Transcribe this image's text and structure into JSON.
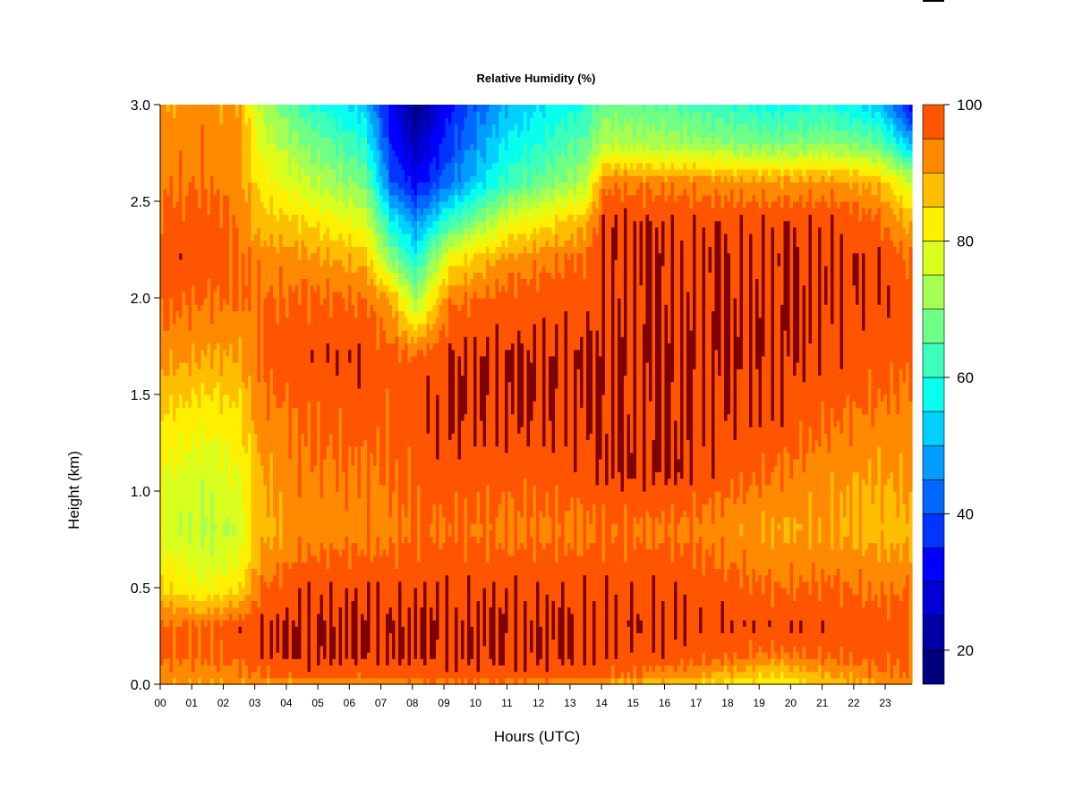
{
  "chart_data": {
    "type": "heatmap",
    "title": "Relative Humidity (%)",
    "xlabel": "Hours (UTC)",
    "ylabel": "Height (km)",
    "x_ticks": [
      "00",
      "01",
      "02",
      "03",
      "04",
      "05",
      "06",
      "07",
      "08",
      "09",
      "10",
      "11",
      "12",
      "13",
      "14",
      "15",
      "16",
      "17",
      "18",
      "19",
      "20",
      "21",
      "22",
      "23"
    ],
    "y_ticks": [
      "0.0",
      "0.5",
      "1.0",
      "1.5",
      "2.0",
      "2.5",
      "3.0"
    ],
    "xlim": [
      0,
      23.85
    ],
    "ylim": [
      0,
      3.0
    ],
    "colorbar": {
      "levels": [
        15,
        20,
        25,
        30,
        35,
        40,
        45,
        50,
        55,
        60,
        65,
        70,
        75,
        80,
        85,
        90,
        95,
        100
      ],
      "colors": [
        "#00007F",
        "#0000A8",
        "#0000D4",
        "#0000FF",
        "#0034FF",
        "#0068FF",
        "#009CFF",
        "#00D0FF",
        "#08FFEE",
        "#3CFFBA",
        "#70FF86",
        "#A4FF52",
        "#D8FF1E",
        "#FFF000",
        "#FFBF00",
        "#FF8A00",
        "#FF5400",
        "#FF2000",
        "#D40000",
        "#7F0000"
      ],
      "tick_labels": [
        "20",
        "40",
        "60",
        "80",
        "100"
      ],
      "tick_values": [
        20,
        40,
        60,
        80,
        100
      ]
    },
    "time_hours": [
      0,
      1.5,
      2.5,
      3.2,
      4.5,
      6.5,
      7.3,
      8.1,
      9.2,
      11,
      13.5,
      14.1,
      16.5,
      19.5,
      21.2,
      22.8,
      23.85
    ],
    "heights_km": [
      0.0,
      0.05,
      0.15,
      0.3,
      0.5,
      0.8,
      1.1,
      1.4,
      1.7,
      2.0,
      2.2,
      2.4,
      2.6,
      2.8,
      3.0
    ],
    "rh_percent": [
      [
        90,
        90,
        90,
        90,
        90,
        90,
        90,
        92,
        94,
        93,
        90,
        88,
        85,
        82,
        86,
        90,
        90
      ],
      [
        93,
        92,
        93,
        95,
        97,
        97,
        97,
        97,
        98,
        98,
        97,
        96,
        92,
        85,
        90,
        94,
        95
      ],
      [
        96,
        96,
        97,
        99,
        100,
        100,
        100,
        100,
        100,
        100,
        100,
        99,
        98,
        94,
        96,
        97,
        96
      ],
      [
        96,
        96,
        98,
        100,
        100,
        100,
        100,
        100,
        100,
        100,
        100,
        100,
        99,
        99,
        99,
        98,
        97
      ],
      [
        85,
        80,
        84,
        95,
        99,
        99,
        99,
        99,
        99,
        99,
        99,
        99,
        99,
        95,
        96,
        94,
        95
      ],
      [
        78,
        74,
        76,
        88,
        92,
        93,
        93,
        95,
        95,
        94,
        94,
        95,
        94,
        90,
        90,
        88,
        88
      ],
      [
        80,
        77,
        80,
        90,
        94,
        95,
        95,
        97,
        98,
        97,
        98,
        100,
        100,
        95,
        92,
        90,
        92
      ],
      [
        85,
        82,
        84,
        93,
        96,
        97,
        96,
        98,
        100,
        100,
        100,
        100,
        100,
        99,
        96,
        94,
        93
      ],
      [
        92,
        90,
        90,
        96,
        99,
        99,
        97,
        96,
        100,
        100,
        100,
        100,
        100,
        100,
        99,
        98,
        96
      ],
      [
        97,
        95,
        95,
        95,
        96,
        95,
        90,
        72,
        94,
        97,
        98,
        100,
        100,
        100,
        100,
        99,
        97
      ],
      [
        99,
        98,
        96,
        93,
        92,
        88,
        70,
        58,
        82,
        92,
        96,
        100,
        100,
        100,
        100,
        99,
        95
      ],
      [
        96,
        97,
        94,
        87,
        85,
        78,
        58,
        46,
        62,
        78,
        88,
        100,
        99,
        99,
        99,
        96,
        88
      ],
      [
        94,
        95,
        92,
        83,
        76,
        68,
        42,
        32,
        44,
        62,
        74,
        94,
        93,
        91,
        92,
        88,
        76
      ],
      [
        92,
        94,
        91,
        78,
        70,
        60,
        36,
        24,
        38,
        56,
        66,
        74,
        72,
        68,
        70,
        66,
        50
      ],
      [
        90,
        93,
        90,
        74,
        62,
        52,
        32,
        18,
        34,
        50,
        60,
        68,
        64,
        58,
        60,
        52,
        32
      ]
    ]
  }
}
